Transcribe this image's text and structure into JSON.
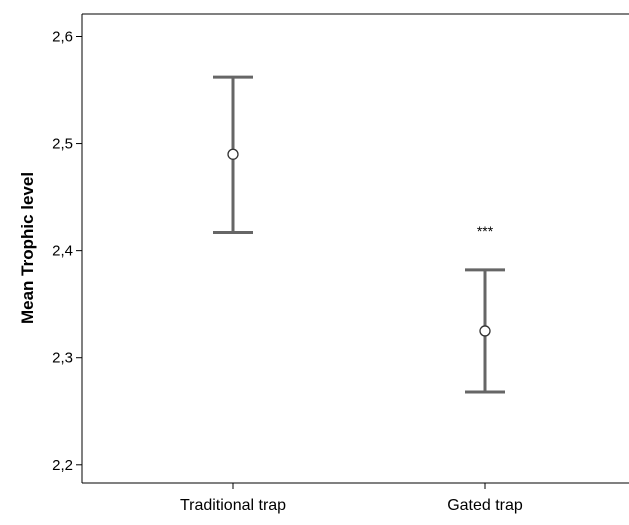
{
  "chart_data": {
    "type": "errorbar",
    "title": "",
    "xlabel": "",
    "ylabel": "Mean Trophic level",
    "ylim": [
      2.183,
      2.621
    ],
    "y_ticks": [
      2.2,
      2.3,
      2.4,
      2.5,
      2.6
    ],
    "y_tick_labels": [
      "2,2",
      "2,3",
      "2,4",
      "2,5",
      "2,6"
    ],
    "categories": [
      "Traditional trap",
      "Gated trap"
    ],
    "points": [
      {
        "category": "Traditional trap",
        "mean": 2.49,
        "lower": 2.417,
        "upper": 2.562,
        "annotation": ""
      },
      {
        "category": "Gated trap",
        "mean": 2.325,
        "lower": 2.268,
        "upper": 2.382,
        "annotation": "***"
      }
    ],
    "grid": false,
    "legend": "none",
    "colors": {
      "errorbar": "#666666",
      "axis": "#000000",
      "marker_edge": "#333333"
    }
  }
}
